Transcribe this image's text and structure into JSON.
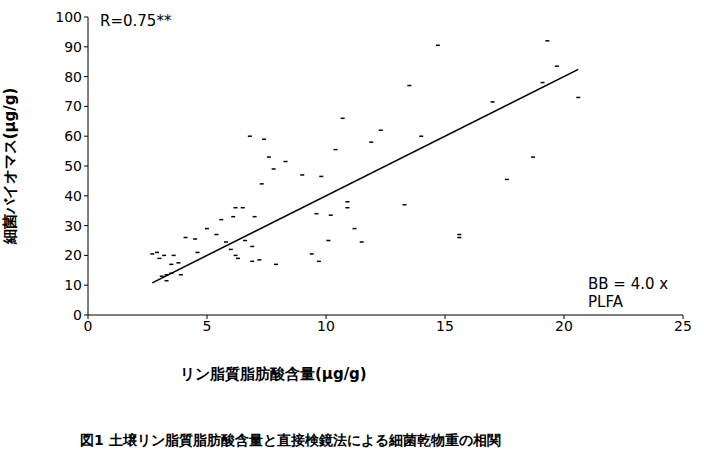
{
  "chart_data": {
    "type": "scatter",
    "title": "図1 土壌リン脂質脂肪酸含量と直接検鏡法による細菌乾物重の相関",
    "x_label": "リン脂質脂肪酸含量(μg/g)",
    "y_label": "細菌バイオマス(μg/g)",
    "annotations": [
      "R=0.75**",
      "BB = 4.0 x PLFA"
    ],
    "xlim": [
      0,
      25
    ],
    "xticks": [
      0,
      5,
      10,
      15,
      20,
      25
    ],
    "ylim": [
      0,
      100
    ],
    "yticks": [
      0,
      10,
      20,
      30,
      40,
      50,
      60,
      70,
      80,
      90,
      100
    ],
    "grid": false,
    "series": [
      {
        "type": "scatter",
        "color": "#000000",
        "marker": "dash",
        "x": [
          2.7,
          2.9,
          3.0,
          3.1,
          3.2,
          3.3,
          3.3,
          3.5,
          3.6,
          3.8,
          3.9,
          3.5,
          4.1,
          4.5,
          4.6,
          5.0,
          5.4,
          5.6,
          5.8,
          6.0,
          6.1,
          6.2,
          6.2,
          6.3,
          6.5,
          6.6,
          6.8,
          6.9,
          6.9,
          7.0,
          7.2,
          7.3,
          7.4,
          7.6,
          7.8,
          7.9,
          8.3,
          9.0,
          9.4,
          9.6,
          9.7,
          9.8,
          10.1,
          10.2,
          10.4,
          10.7,
          10.9,
          10.9,
          11.2,
          11.5,
          11.9,
          12.3,
          13.3,
          13.5,
          14.0,
          14.7,
          15.6,
          15.6,
          17.0,
          17.6,
          18.7,
          19.1,
          19.3,
          19.7,
          20.6
        ],
        "values": [
          20.5,
          21,
          19,
          13,
          20,
          11.5,
          13.5,
          14,
          20,
          17.5,
          13.5,
          17,
          26,
          25.5,
          21,
          29,
          27,
          32,
          24.5,
          22,
          33,
          36,
          20,
          19,
          36,
          25,
          60,
          23,
          18,
          33,
          18.5,
          44,
          59,
          53,
          49,
          17,
          51.5,
          47,
          20.5,
          34,
          18,
          46.5,
          25,
          33.5,
          55.5,
          66,
          38,
          36,
          29,
          24.5,
          58,
          62,
          37,
          77,
          60,
          90.5,
          27,
          26,
          71.5,
          45.5,
          53,
          78,
          92,
          83.5,
          73
        ]
      },
      {
        "type": "line",
        "color": "#000000",
        "line_style": "solid",
        "x": [
          2.7,
          20.6
        ],
        "values": [
          10.8,
          82.4
        ]
      }
    ]
  }
}
